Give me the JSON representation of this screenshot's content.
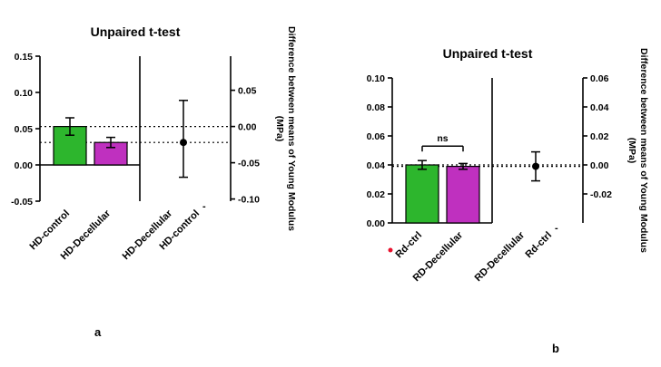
{
  "figure": {
    "background": "#ffffff",
    "panels": [
      {
        "label": "a"
      },
      {
        "label": "b"
      }
    ]
  },
  "colors": {
    "bar_green": "#2db62d",
    "bar_magenta": "#bf30bf",
    "axis": "#000000",
    "point": "#000000",
    "red_dot": "#e8112d"
  },
  "chart_data": [
    {
      "type": "bar",
      "panel": "a",
      "title": "Unpaired t-test",
      "right_axis_label_line1": "Difference between means of Young Modulus",
      "right_axis_label_line2": "(MPa)",
      "categories": [
        "HD-control",
        "HD-Decellular"
      ],
      "values": [
        0.053,
        0.031
      ],
      "errors": [
        0.012,
        0.007
      ],
      "bar_colors": [
        "#2db62d",
        "#bf30bf"
      ],
      "left_axis": {
        "min": -0.05,
        "max": 0.15,
        "ticks": [
          {
            "v": 0.15,
            "label": "0.15"
          },
          {
            "v": 0.1,
            "label": "0.10"
          },
          {
            "v": 0.05,
            "label": "0.05"
          },
          {
            "v": 0.0,
            "label": "0.00"
          },
          {
            "v": -0.05,
            "label": "-0.05"
          }
        ]
      },
      "right_axis": {
        "offset": 0.053,
        "ticks": [
          {
            "v": 0.05,
            "label": "0.05"
          },
          {
            "v": 0.0,
            "label": "0.00"
          },
          {
            "v": -0.05,
            "label": "-0.05"
          },
          {
            "v": -0.1,
            "label": "-0.10"
          }
        ]
      },
      "dotted_lines": [
        0.053,
        0.031
      ],
      "diff_section": {
        "labels": [
          "HD-Decellular",
          "HD-control"
        ],
        "minus_sign": "-",
        "diff": -0.022,
        "ci_low": -0.07,
        "ci_high": 0.036
      },
      "significance": null,
      "marker_dot": false
    },
    {
      "type": "bar",
      "panel": "b",
      "title": "Unpaired t-test",
      "right_axis_label_line1": "Difference between means of Young Modulus",
      "right_axis_label_line2": "(MPa)",
      "categories": [
        "Rd-ctrl",
        "RD-Decellular"
      ],
      "values": [
        0.04,
        0.039
      ],
      "errors": [
        0.003,
        0.002
      ],
      "bar_colors": [
        "#2db62d",
        "#bf30bf"
      ],
      "left_axis": {
        "min": 0.0,
        "max": 0.1,
        "ticks": [
          {
            "v": 0.1,
            "label": "0.10"
          },
          {
            "v": 0.08,
            "label": "0.08"
          },
          {
            "v": 0.06,
            "label": "0.06"
          },
          {
            "v": 0.04,
            "label": "0.04"
          },
          {
            "v": 0.02,
            "label": "0.02"
          },
          {
            "v": 0.0,
            "label": "0.00"
          }
        ]
      },
      "right_axis": {
        "offset": 0.04,
        "ticks": [
          {
            "v": 0.06,
            "label": "0.06"
          },
          {
            "v": 0.04,
            "label": "0.04"
          },
          {
            "v": 0.02,
            "label": "0.02"
          },
          {
            "v": 0.0,
            "label": "0.00"
          },
          {
            "v": -0.02,
            "label": "-0.02"
          }
        ]
      },
      "dotted_lines": [
        0.04,
        0.039
      ],
      "diff_section": {
        "labels": [
          "RD-Decellular",
          "Rd-ctrl"
        ],
        "minus_sign": "-",
        "diff": -0.001,
        "ci_low": -0.011,
        "ci_high": 0.009
      },
      "significance": {
        "label": "ns",
        "y": 0.053
      },
      "marker_dot": true
    }
  ]
}
